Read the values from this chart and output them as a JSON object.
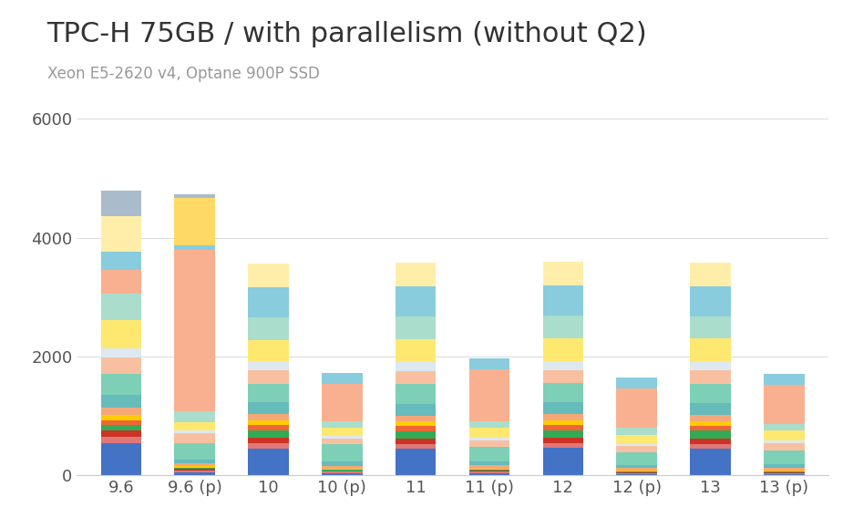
{
  "title": "TPC-H 75GB / with parallelism (without Q2)",
  "subtitle": "Xeon E5-2620 v4, Optane 900P SSD",
  "categories": [
    "9.6",
    "9.6 (p)",
    "10",
    "10 (p)",
    "11",
    "11 (p)",
    "12",
    "12 (p)",
    "13",
    "13 (p)"
  ],
  "ylim": [
    0,
    6400
  ],
  "yticks": [
    0,
    2000,
    4000,
    6000
  ],
  "background_color": "#ffffff",
  "title_fontsize": 22,
  "subtitle_fontsize": 12,
  "bar_width": 0.55,
  "colors": [
    "#4472c4",
    "#e87c7c",
    "#cc3322",
    "#33aa55",
    "#ee6633",
    "#ffcc00",
    "#f4a878",
    "#66bbbb",
    "#7dcfb6",
    "#f8c8b0",
    "#dde8f0",
    "#ffe870",
    "#aaddcc",
    "#f9c0a0",
    "#88ccdd",
    "#ffeeaa",
    "#ffd966",
    "#aacccc"
  ],
  "stacks": [
    [
      545,
      55,
      445,
      28,
      445,
      38,
      455,
      18,
      445,
      18
    ],
    [
      100,
      30,
      95,
      28,
      82,
      18,
      82,
      13,
      82,
      13
    ],
    [
      105,
      18,
      85,
      14,
      82,
      18,
      92,
      13,
      92,
      13
    ],
    [
      100,
      14,
      135,
      18,
      128,
      13,
      132,
      13,
      132,
      13
    ],
    [
      80,
      8,
      90,
      8,
      88,
      8,
      82,
      8,
      82,
      8
    ],
    [
      90,
      25,
      80,
      18,
      80,
      20,
      80,
      18,
      80,
      18
    ],
    [
      120,
      55,
      100,
      40,
      100,
      55,
      100,
      35,
      100,
      45
    ],
    [
      220,
      60,
      200,
      85,
      200,
      65,
      200,
      50,
      200,
      60
    ],
    [
      350,
      280,
      310,
      290,
      330,
      235,
      335,
      215,
      330,
      235
    ],
    [
      270,
      160,
      220,
      90,
      220,
      115,
      215,
      105,
      220,
      110
    ],
    [
      150,
      50,
      140,
      45,
      145,
      45,
      145,
      40,
      145,
      45
    ],
    [
      480,
      130,
      380,
      130,
      390,
      165,
      385,
      155,
      390,
      175
    ],
    [
      450,
      190,
      370,
      120,
      380,
      110,
      380,
      115,
      375,
      115
    ],
    [
      390,
      2720,
      0,
      620,
      0,
      880,
      0,
      660,
      0,
      660
    ],
    [
      310,
      80,
      510,
      190,
      510,
      185,
      510,
      185,
      510,
      185
    ],
    [
      600,
      0,
      400,
      0,
      400,
      0,
      400,
      0,
      400,
      0
    ],
    [
      0,
      790,
      0,
      0,
      0,
      0,
      0,
      0,
      0,
      0
    ],
    [
      431,
      60,
      0,
      0,
      0,
      0,
      0,
      0,
      0,
      0
    ]
  ]
}
